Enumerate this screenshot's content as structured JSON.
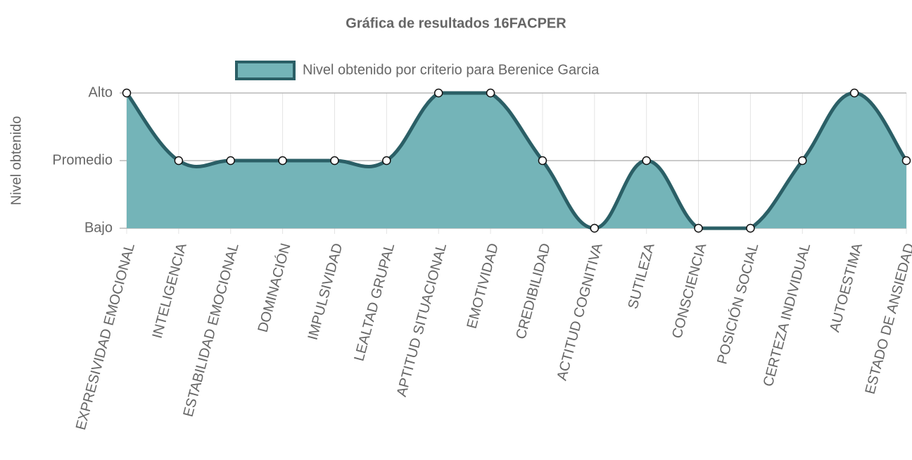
{
  "chart_data": {
    "type": "line",
    "title": "Gráfica de resultados 16FACPER",
    "y_label": "Nivel obtenido",
    "categories": [
      "EXPRESIVIDAD EMOCIONAL",
      "INTELIGENCIA",
      "ESTABILIDAD EMOCIONAL",
      "DOMINACIÓN",
      "IMPULSIVIDAD",
      "LEALTAD GRUPAL",
      "APTITUD SITUACIONAL",
      "EMOTIVIDAD",
      "CREDIBILIDAD",
      "ACTITUD COGNITIVA",
      "SUTILEZA",
      "CONSCIENCIA",
      "POSICIÓN SOCIAL",
      "CERTEZA INDIVIDUAL",
      "AUTOESTIMA",
      "ESTADO DE ANSIEDAD"
    ],
    "series": [
      {
        "name": "Nivel obtenido por criterio para Berenice Garcia",
        "color": "#2b5f66",
        "fill": "#74b4b8",
        "values": [
          3,
          2,
          2,
          2,
          2,
          2,
          3,
          3,
          2,
          1,
          2,
          1,
          1,
          2,
          3,
          2
        ]
      }
    ],
    "ylim": [
      1,
      3
    ],
    "yticks": [
      {
        "value": 1,
        "label": "Bajo"
      },
      {
        "value": 2,
        "label": "Promedio"
      },
      {
        "value": 3,
        "label": "Alto"
      }
    ],
    "grid": true,
    "legend": "top"
  }
}
